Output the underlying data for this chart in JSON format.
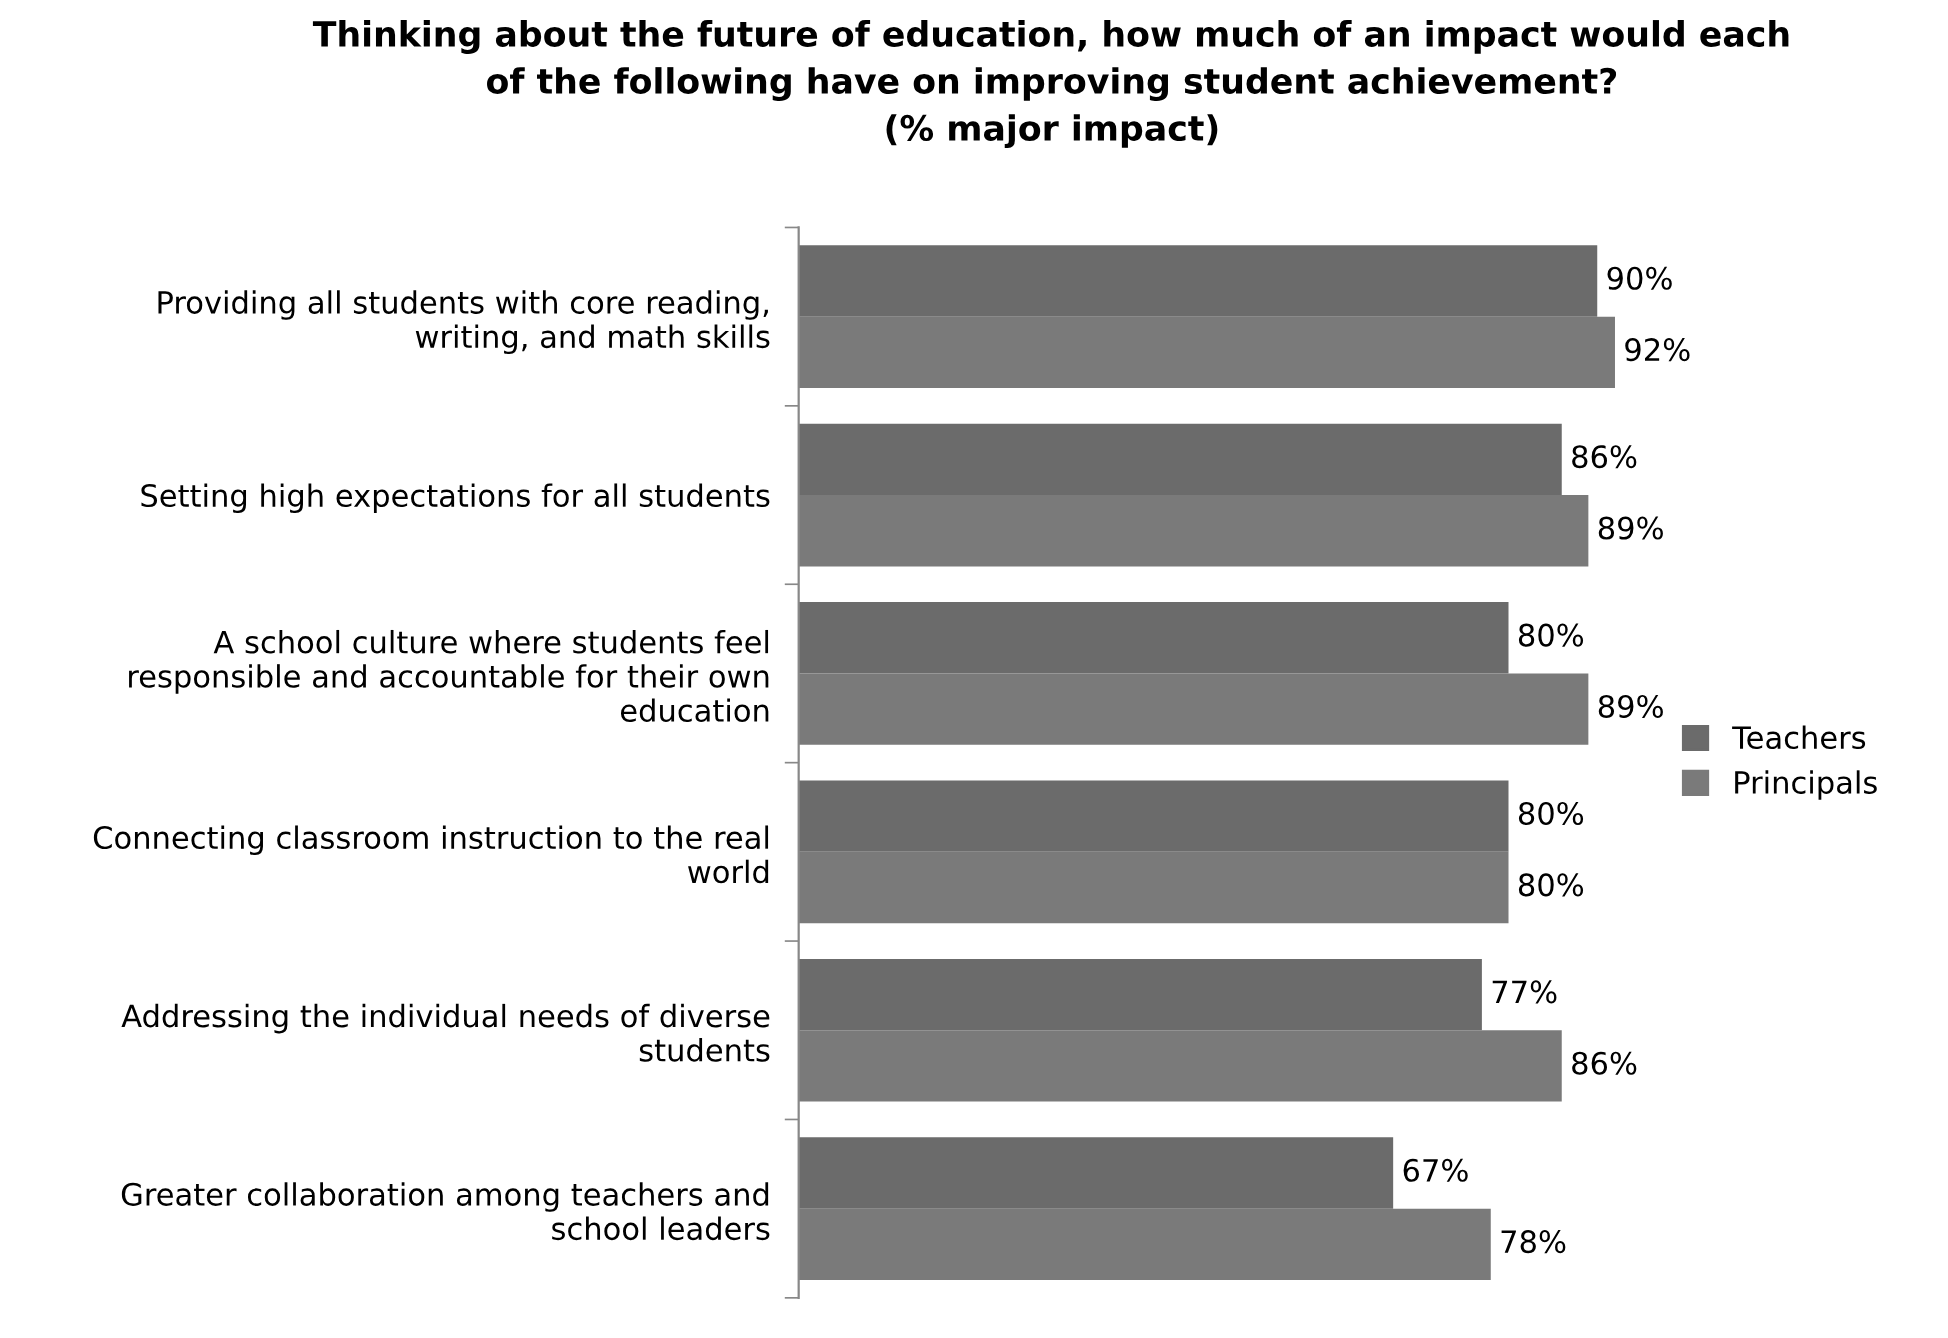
{
  "chart_data": {
    "type": "bar",
    "orientation": "horizontal",
    "title": "Thinking about the future of education, how much of an impact would each\nof the following have on improving student achievement?\n(% major impact)",
    "categories": [
      "Providing all students with core reading,\nwriting, and math skills",
      "Setting high expectations for all students",
      "A school culture where students feel\nresponsible and accountable for their own\neducation",
      "Connecting classroom instruction to the real\nworld",
      "Addressing the individual needs of diverse\nstudents",
      "Greater collaboration among teachers and\nschool leaders"
    ],
    "series": [
      {
        "name": "Teachers",
        "color": "#6b6b6b",
        "values": [
          90,
          86,
          80,
          80,
          77,
          67
        ],
        "value_labels": [
          "90%",
          "86%",
          "80%",
          "80%",
          "77%",
          "67%"
        ]
      },
      {
        "name": "Principals",
        "color": "#7a7a7a",
        "values": [
          92,
          89,
          89,
          80,
          86,
          78
        ],
        "value_labels": [
          "92%",
          "89%",
          "89%",
          "80%",
          "86%",
          "78%"
        ]
      }
    ],
    "legend": "right",
    "grid": false
  }
}
